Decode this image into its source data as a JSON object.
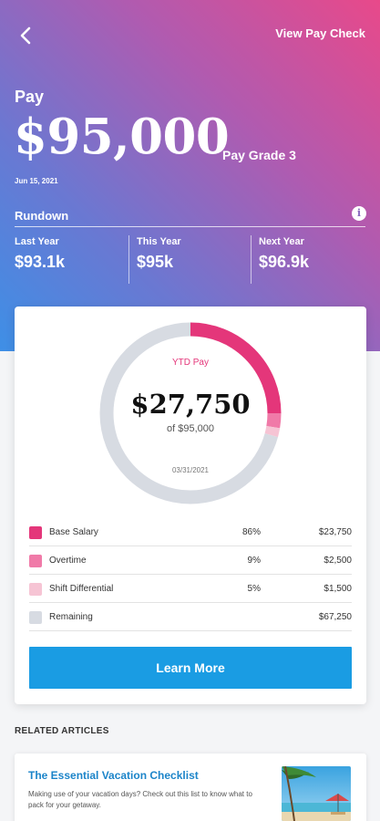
{
  "header": {
    "view_pay_check": "View Pay Check"
  },
  "pay": {
    "label": "Pay",
    "amount": "$95,000",
    "grade": "Pay Grade 3",
    "date": "Jun 15, 2021"
  },
  "rundown": {
    "title": "Rundown",
    "info_glyph": "i",
    "stats": [
      {
        "label": "Last Year",
        "value": "$93.1k"
      },
      {
        "label": "This Year",
        "value": "$95k"
      },
      {
        "label": "Next Year",
        "value": "$96.9k"
      }
    ]
  },
  "ytd": {
    "label": "YTD Pay",
    "amount": "$27,750",
    "of": "of $95,000",
    "date": "03/31/2021"
  },
  "breakdown": [
    {
      "name": "Base Salary",
      "pct": "86%",
      "amount": "$23,750",
      "color": "#e4367a",
      "share": 0.25
    },
    {
      "name": "Overtime",
      "pct": "9%",
      "amount": "$2,500",
      "color": "#f07aa8",
      "share": 0.0263
    },
    {
      "name": "Shift Differential",
      "pct": "5%",
      "amount": "$1,500",
      "color": "#f6c4d4",
      "share": 0.0158
    },
    {
      "name": "Remaining",
      "pct": "",
      "amount": "$67,250",
      "color": "#d7dbe2",
      "share": 0.7079
    }
  ],
  "learn_more": "Learn More",
  "related": {
    "title": "RELATED ARTICLES",
    "article": {
      "title": "The Essential Vacation Checklist",
      "desc": "Making use of your vacation days? Check out this list to know what to pack for your getaway."
    }
  }
}
